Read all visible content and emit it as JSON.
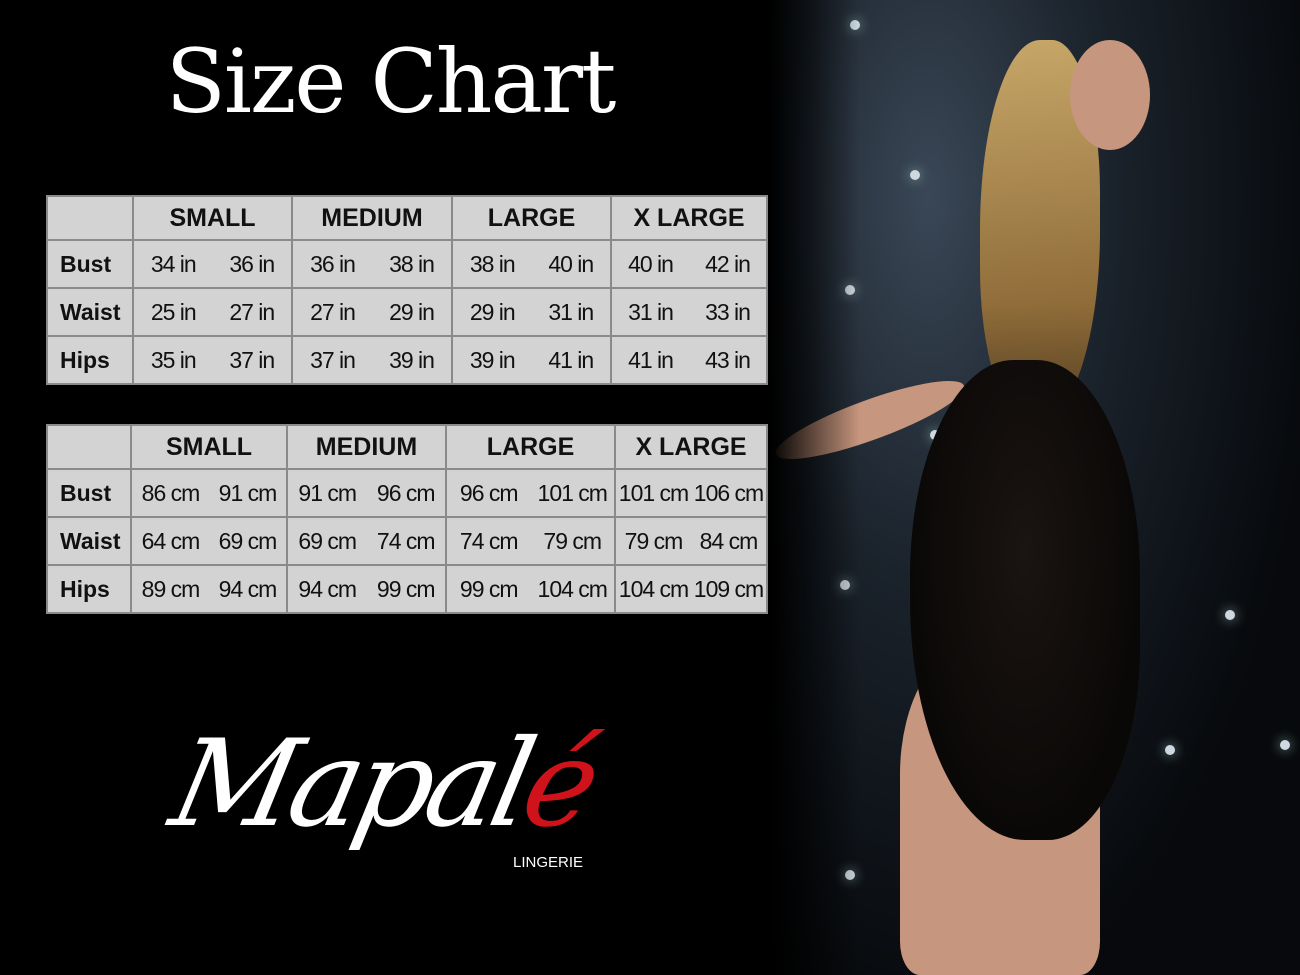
{
  "title": "Size Chart",
  "sizes": [
    "SMALL",
    "MEDIUM",
    "LARGE",
    "X LARGE"
  ],
  "inches": [
    {
      "label": "Bust",
      "values": [
        [
          "34 in",
          "36 in"
        ],
        [
          "36 in",
          "38 in"
        ],
        [
          "38 in",
          "40 in"
        ],
        [
          "40 in",
          "42 in"
        ]
      ]
    },
    {
      "label": "Waist",
      "values": [
        [
          "25 in",
          "27 in"
        ],
        [
          "27 in",
          "29 in"
        ],
        [
          "29 in",
          "31 in"
        ],
        [
          "31 in",
          "33 in"
        ]
      ]
    },
    {
      "label": "Hips",
      "values": [
        [
          "35 in",
          "37 in"
        ],
        [
          "37 in",
          "39 in"
        ],
        [
          "39 in",
          "41 in"
        ],
        [
          "41 in",
          "43 in"
        ]
      ]
    }
  ],
  "cm": [
    {
      "label": "Bust",
      "values": [
        [
          "86 cm",
          "91 cm"
        ],
        [
          "91 cm",
          "96 cm"
        ],
        [
          "96 cm",
          "101 cm"
        ],
        [
          "101 cm",
          "106 cm"
        ]
      ]
    },
    {
      "label": "Waist",
      "values": [
        [
          "64 cm",
          "69 cm"
        ],
        [
          "69 cm",
          "74 cm"
        ],
        [
          "74 cm",
          "79 cm"
        ],
        [
          "79 cm",
          "84 cm"
        ]
      ]
    },
    {
      "label": "Hips",
      "values": [
        [
          "89 cm",
          "94 cm"
        ],
        [
          "94 cm",
          "99 cm"
        ],
        [
          "99 cm",
          "104 cm"
        ],
        [
          "104 cm",
          "109 cm"
        ]
      ]
    }
  ],
  "brand": {
    "name_main": "Mapal",
    "name_accent": "é",
    "subtitle": "LINGERIE",
    "accent_color": "#d0121b"
  },
  "colors": {
    "background": "#000000",
    "table_bg": "#d3d3d3",
    "table_border": "#8a8a8a"
  }
}
